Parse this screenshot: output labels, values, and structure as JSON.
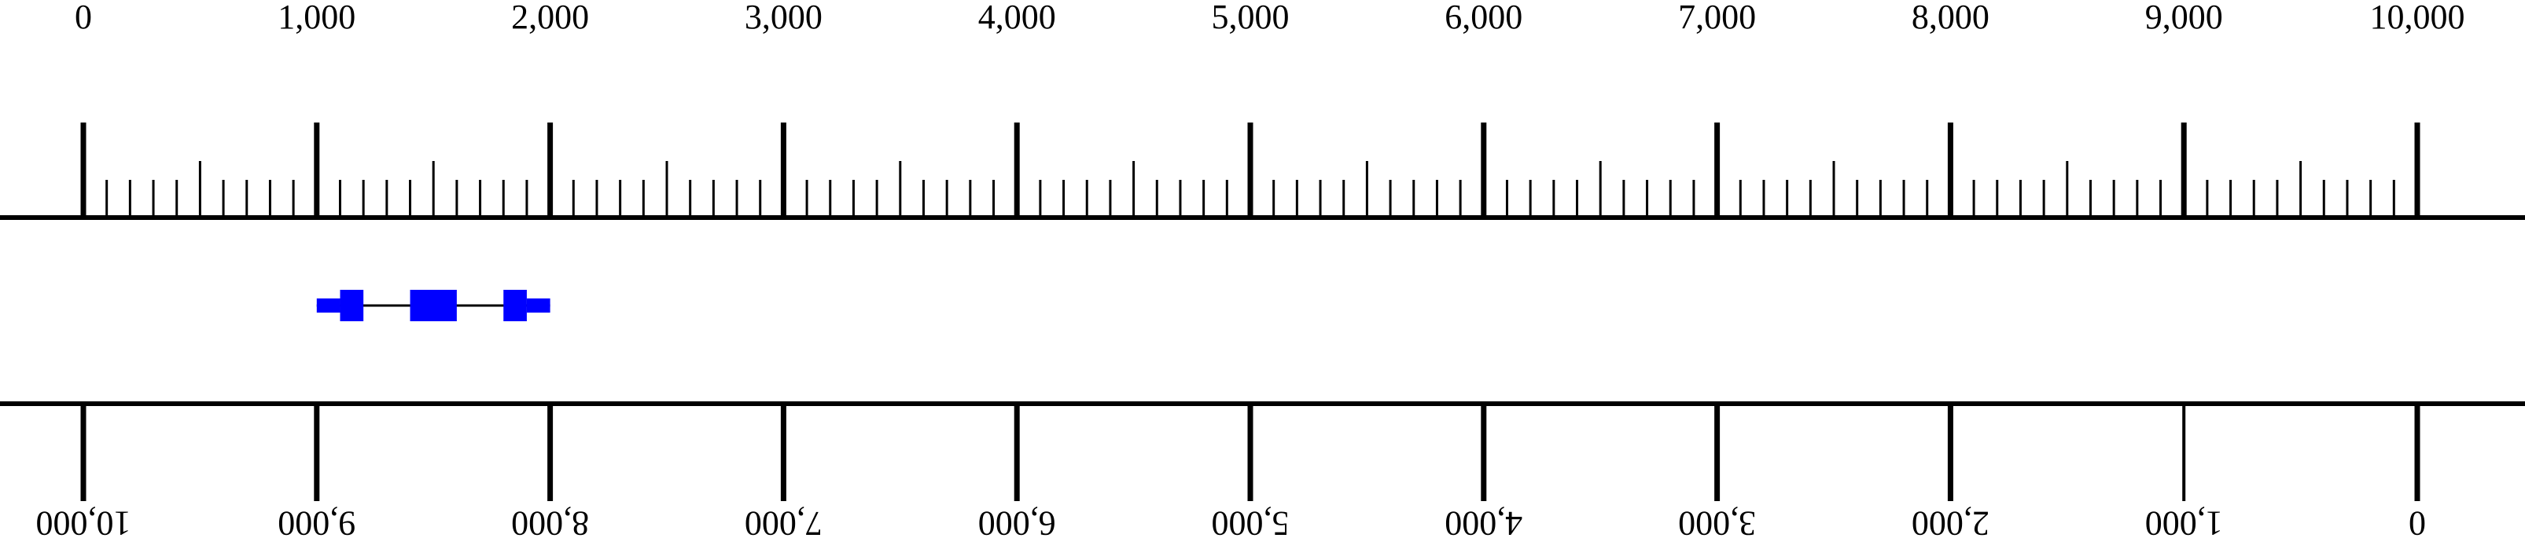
{
  "ruler": {
    "min": 0,
    "max": 10000,
    "major_step": 1000,
    "minor_step": 100,
    "mid_step": 500,
    "top_labels": [
      "0",
      "1,000",
      "2,000",
      "3,000",
      "4,000",
      "5,000",
      "6,000",
      "7,000",
      "8,000",
      "9,000",
      "10,000"
    ],
    "bottom_labels": [
      "10,000",
      "9,000",
      "8,000",
      "7,000",
      "6,000",
      "5,000",
      "4,000",
      "3,000",
      "2,000",
      "1,000",
      "0"
    ],
    "color": "#000000"
  },
  "gene_model": {
    "start": 1000,
    "end": 2000,
    "color": "#0000ff",
    "line_color": "#000000",
    "utrs": [
      {
        "start": 1000,
        "end": 1100
      },
      {
        "start": 1900,
        "end": 2000
      }
    ],
    "exons": [
      {
        "start": 1100,
        "end": 1200
      },
      {
        "start": 1400,
        "end": 1600
      },
      {
        "start": 1800,
        "end": 1900
      }
    ]
  }
}
